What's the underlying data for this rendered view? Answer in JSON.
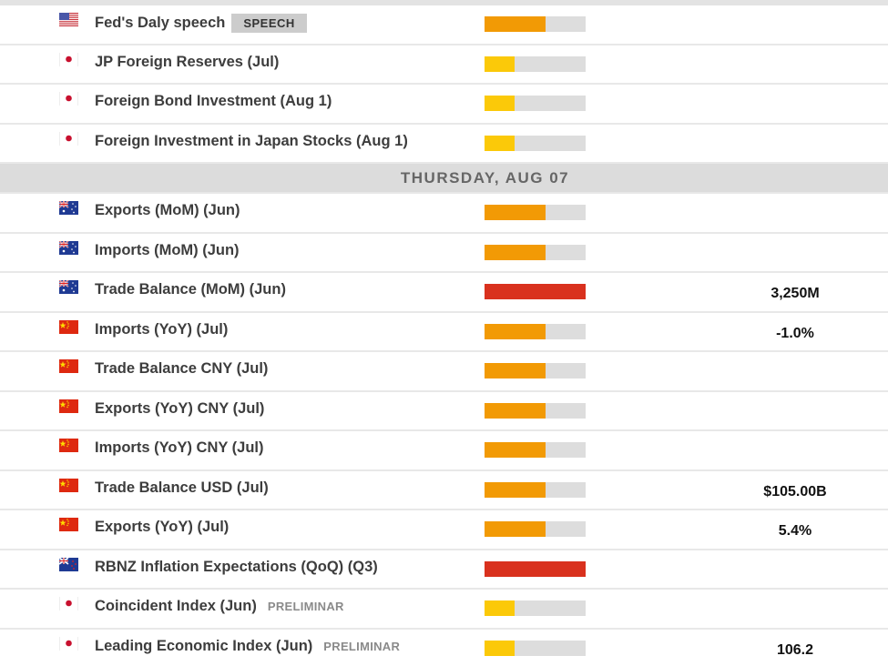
{
  "colors": {
    "impact_high": "#d9311e",
    "impact_medium": "#f29a05",
    "impact_low": "#fbc909",
    "impact_track": "#dddddd",
    "date_header_bg": "#dcdcdc"
  },
  "events_before": [
    {
      "flag": "us-flag-icon",
      "title": "Fed's Daly speech",
      "badge": "SPEECH",
      "badge_type": "speech",
      "impact": "medium",
      "impact_pct": 60,
      "value": ""
    },
    {
      "flag": "jp-flag-icon",
      "title": "JP Foreign Reserves (Jul)",
      "badge": "",
      "badge_type": "",
      "impact": "low",
      "impact_pct": 30,
      "value": ""
    },
    {
      "flag": "jp-flag-icon",
      "title": "Foreign Bond Investment (Aug 1)",
      "badge": "",
      "badge_type": "",
      "impact": "low",
      "impact_pct": 30,
      "value": ""
    },
    {
      "flag": "jp-flag-icon",
      "title": "Foreign Investment in Japan Stocks (Aug 1)",
      "badge": "",
      "badge_type": "",
      "impact": "low",
      "impact_pct": 30,
      "value": ""
    }
  ],
  "date_header": {
    "label": "THURSDAY, AUG 07"
  },
  "events_after": [
    {
      "flag": "au-flag-icon",
      "title": "Exports (MoM) (Jun)",
      "badge": "",
      "badge_type": "",
      "impact": "medium",
      "impact_pct": 60,
      "value": ""
    },
    {
      "flag": "au-flag-icon",
      "title": "Imports (MoM) (Jun)",
      "badge": "",
      "badge_type": "",
      "impact": "medium",
      "impact_pct": 60,
      "value": ""
    },
    {
      "flag": "au-flag-icon",
      "title": "Trade Balance (MoM) (Jun)",
      "badge": "",
      "badge_type": "",
      "impact": "high",
      "impact_pct": 100,
      "value": "3,250M"
    },
    {
      "flag": "cn-flag-icon",
      "title": "Imports (YoY) (Jul)",
      "badge": "",
      "badge_type": "",
      "impact": "medium",
      "impact_pct": 60,
      "value": "-1.0%"
    },
    {
      "flag": "cn-flag-icon",
      "title": "Trade Balance CNY (Jul)",
      "badge": "",
      "badge_type": "",
      "impact": "medium",
      "impact_pct": 60,
      "value": ""
    },
    {
      "flag": "cn-flag-icon",
      "title": "Exports (YoY) CNY (Jul)",
      "badge": "",
      "badge_type": "",
      "impact": "medium",
      "impact_pct": 60,
      "value": ""
    },
    {
      "flag": "cn-flag-icon",
      "title": "Imports (YoY) CNY (Jul)",
      "badge": "",
      "badge_type": "",
      "impact": "medium",
      "impact_pct": 60,
      "value": ""
    },
    {
      "flag": "cn-flag-icon",
      "title": "Trade Balance USD (Jul)",
      "badge": "",
      "badge_type": "",
      "impact": "medium",
      "impact_pct": 60,
      "value": "$105.00B"
    },
    {
      "flag": "cn-flag-icon",
      "title": "Exports (YoY) (Jul)",
      "badge": "",
      "badge_type": "",
      "impact": "medium",
      "impact_pct": 60,
      "value": "5.4%"
    },
    {
      "flag": "nz-flag-icon",
      "title": "RBNZ Inflation Expectations (QoQ) (Q3)",
      "badge": "",
      "badge_type": "",
      "impact": "high",
      "impact_pct": 100,
      "value": ""
    },
    {
      "flag": "jp-flag-icon",
      "title": "Coincident Index (Jun)",
      "badge": "PRELIMINAR",
      "badge_type": "prelim",
      "impact": "low",
      "impact_pct": 30,
      "value": ""
    },
    {
      "flag": "jp-flag-icon",
      "title": "Leading Economic Index (Jun)",
      "badge": "PRELIMINAR",
      "badge_type": "prelim",
      "impact": "low",
      "impact_pct": 30,
      "value": "106.2"
    }
  ]
}
